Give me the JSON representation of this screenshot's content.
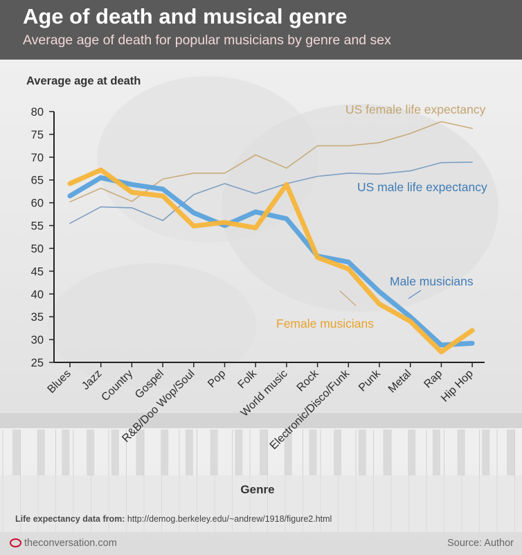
{
  "header": {
    "title": "Age of death and musical genre",
    "subtitle": "Average age of death for popular musicians by genre and sex"
  },
  "chart_data": {
    "type": "line",
    "title": "Age of death and musical genre",
    "subtitle": "Average age of death for popular musicians by genre and sex",
    "xlabel": "Genre",
    "ylabel": "Average age at death",
    "ylim": [
      25,
      80
    ],
    "yticks": [
      25,
      30,
      35,
      40,
      45,
      50,
      55,
      60,
      65,
      70,
      75,
      80
    ],
    "grid": false,
    "categories": [
      "Blues",
      "Jazz",
      "Country",
      "Gospel",
      "R&B/Doo Wop/Soul",
      "Pop",
      "Folk",
      "World music",
      "Rock",
      "Electronic/Disco/Funk",
      "Punk",
      "Metal",
      "Rap",
      "Hip Hop"
    ],
    "series": [
      {
        "name": "US female life expectancy",
        "color": "#c4a46f",
        "style": "thin",
        "values": [
          60.2,
          63.2,
          60.3,
          65.2,
          66.5,
          66.5,
          70.5,
          67.6,
          72.5,
          72.5,
          73.2,
          75.2,
          77.8,
          76.3
        ]
      },
      {
        "name": "US male life expectancy",
        "color": "#7197bd",
        "style": "thin",
        "values": [
          55.5,
          59.1,
          58.9,
          56.1,
          61.8,
          64.2,
          62.0,
          64.2,
          65.8,
          66.5,
          66.3,
          67.0,
          68.8,
          68.9
        ]
      },
      {
        "name": "Male musicians",
        "color": "#5aa2dc",
        "style": "thick",
        "values": [
          61.5,
          65.5,
          64.0,
          63.0,
          57.8,
          55.0,
          58.0,
          56.5,
          48.3,
          47.0,
          40.5,
          35.0,
          28.8,
          29.2
        ]
      },
      {
        "name": "Female musicians",
        "color": "#f6b53a",
        "style": "thick",
        "values": [
          64.2,
          67.2,
          62.3,
          61.5,
          54.9,
          55.7,
          54.5,
          64.0,
          48.0,
          45.5,
          37.8,
          34.0,
          27.3,
          32.0
        ]
      }
    ],
    "annotations": [
      {
        "text": "US female life expectancy",
        "color": "#c4a46f"
      },
      {
        "text": "US male life expectancy",
        "color": "#3f7bb5"
      },
      {
        "text": "Male musicians",
        "color": "#3f7bb5"
      },
      {
        "text": "Female musicians",
        "color": "#e8a22c"
      }
    ],
    "colors": {
      "axis": "#222222",
      "tick_text": "#2b2b2b",
      "label_text": "#333333"
    }
  },
  "credit": {
    "prefix": "Life expectancy data from:",
    "url": "http://demog.berkeley.edu/~andrew/1918/figure2.html"
  },
  "footer": {
    "brand": "theconversation.com",
    "source": "Source: Author"
  }
}
